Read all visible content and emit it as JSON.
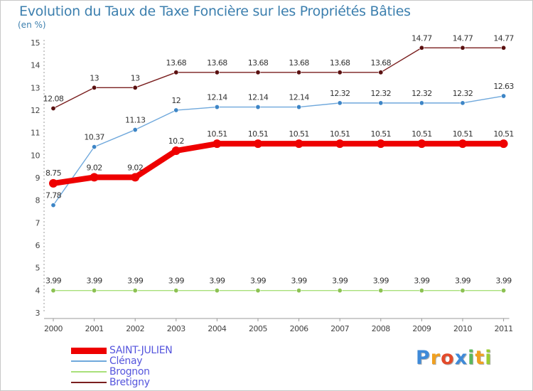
{
  "header": {
    "title": "Evolution du Taux de Taxe Foncière sur les Propriétés Bâties",
    "unit": "(en %)"
  },
  "logo": {
    "letters": [
      {
        "ch": "P",
        "color": "#3f8ad8"
      },
      {
        "ch": "r",
        "color": "#f0a020"
      },
      {
        "ch": "o",
        "color": "#e34a2a"
      },
      {
        "ch": "x",
        "color": "#3f8ad8"
      },
      {
        "ch": "i",
        "color": "#5cb85c"
      },
      {
        "ch": "t",
        "color": "#f0a020"
      },
      {
        "ch": "i",
        "color": "#9acd32"
      }
    ]
  },
  "chart_data": {
    "type": "line",
    "title": "Evolution du Taux de Taxe Foncière sur les Propriétés Bâties",
    "ylabel": "(en %)",
    "xlabel": "",
    "categories": [
      "2000",
      "2001",
      "2002",
      "2003",
      "2004",
      "2005",
      "2006",
      "2007",
      "2008",
      "2009",
      "2010",
      "2011"
    ],
    "ylim": [
      3,
      15
    ],
    "yticks": [
      "3",
      "4",
      "5",
      "6",
      "7",
      "8",
      "9",
      "10",
      "11",
      "12",
      "13",
      "14",
      "15"
    ],
    "series": [
      {
        "name": "Bretigny",
        "color": "#7a1f1f",
        "marker": "#5a1010",
        "values": [
          12.08,
          13,
          13,
          13.68,
          13.68,
          13.68,
          13.68,
          13.68,
          13.68,
          14.77,
          14.77,
          14.77
        ],
        "labels": [
          "12.08",
          "13",
          "13",
          "13.68",
          "13.68",
          "13.68",
          "13.68",
          "13.68",
          "13.68",
          "14.77",
          "14.77",
          "14.77"
        ]
      },
      {
        "name": "Clénay",
        "color": "#6fa8dc",
        "marker": "#3d85c6",
        "values": [
          7.78,
          10.37,
          11.13,
          12,
          12.14,
          12.14,
          12.14,
          12.32,
          12.32,
          12.32,
          12.32,
          12.63
        ],
        "labels": [
          "7.78",
          "10.37",
          "11.13",
          "12",
          "12.14",
          "12.14",
          "12.14",
          "12.32",
          "12.32",
          "12.32",
          "12.32",
          "12.63"
        ]
      },
      {
        "name": "SAINT-JULIEN",
        "color": "#ee0000",
        "marker": "#ee0000",
        "values": [
          8.75,
          9.02,
          9.02,
          10.2,
          10.51,
          10.51,
          10.51,
          10.51,
          10.51,
          10.51,
          10.51,
          10.51
        ],
        "labels": [
          "8.75",
          "9.02",
          "9.02",
          "10.2",
          "10.51",
          "10.51",
          "10.51",
          "10.51",
          "10.51",
          "10.51",
          "10.51",
          "10.51"
        ]
      },
      {
        "name": "Brognon",
        "color": "#a8e07a",
        "marker": "#8cc152",
        "values": [
          3.99,
          3.99,
          3.99,
          3.99,
          3.99,
          3.99,
          3.99,
          3.99,
          3.99,
          3.99,
          3.99,
          3.99
        ],
        "labels": [
          "3.99",
          "3.99",
          "3.99",
          "3.99",
          "3.99",
          "3.99",
          "3.99",
          "3.99",
          "3.99",
          "3.99",
          "3.99",
          "3.99"
        ]
      }
    ],
    "legend": [
      {
        "name": "SAINT-JULIEN",
        "color": "#ee0000",
        "style": "thick"
      },
      {
        "name": "Clénay",
        "color": "#6fa8dc",
        "style": "thin"
      },
      {
        "name": "Brognon",
        "color": "#a8e07a",
        "style": "thin"
      },
      {
        "name": "Bretigny",
        "color": "#7a1f1f",
        "style": "thin"
      }
    ],
    "legend_position": "bottom-left",
    "grid": false
  }
}
